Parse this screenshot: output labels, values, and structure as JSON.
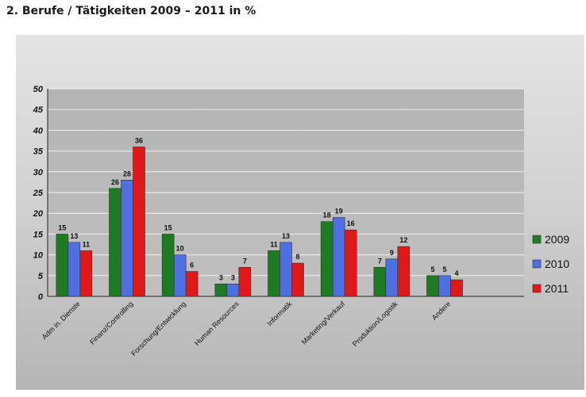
{
  "heading": "2.  Berufe / Tätigkeiten 2009 – 2011 in %",
  "chart_data": {
    "type": "bar",
    "title": "",
    "xlabel": "",
    "ylabel": "",
    "ylim": [
      0,
      50
    ],
    "yticks": [
      0,
      5,
      10,
      15,
      20,
      25,
      30,
      35,
      40,
      45,
      50
    ],
    "grid": true,
    "legend_position": "right",
    "categories": [
      "Adm in. Dienste",
      "Finanz/Controlling",
      "Forschung/Entwicklung",
      "Human Resources",
      "Informatik",
      "Marketing/Verkauf",
      "Produktion/Logistik",
      "Andere"
    ],
    "series": [
      {
        "name": "2009",
        "color": "#1f7a23",
        "values": [
          15,
          26,
          15,
          3,
          11,
          18,
          7,
          5
        ]
      },
      {
        "name": "2010",
        "color": "#4d6fe0",
        "values": [
          13,
          28,
          10,
          3,
          13,
          19,
          9,
          5
        ]
      },
      {
        "name": "2011",
        "color": "#e01818",
        "values": [
          11,
          36,
          6,
          7,
          8,
          16,
          12,
          4
        ]
      }
    ]
  }
}
